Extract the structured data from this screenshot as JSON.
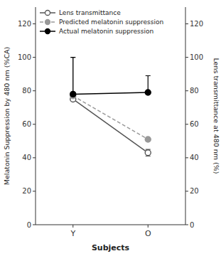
{
  "chart_data": {
    "type": "line",
    "xlabel": "Subjects",
    "ylabel": "Melatonin Suppression by 480 nm (%CA)",
    "y2label": "Lens transmittance at 480 nm (%)",
    "categories": [
      "Y",
      "O"
    ],
    "series": [
      {
        "name": "Lens transmittance",
        "color": "#555555",
        "marker": "open-circle",
        "line_style": "solid",
        "values": [
          75,
          43
        ],
        "error_low": [
          0,
          2
        ],
        "error_high": [
          0,
          2
        ]
      },
      {
        "name": "Predicted melatonin suppression",
        "color": "#999999",
        "marker": "circle",
        "line_style": "dashed",
        "values": [
          77,
          51
        ],
        "error_low": [
          0,
          0
        ],
        "error_high": [
          23,
          0
        ]
      },
      {
        "name": "Actual melatonin suppression",
        "color": "#000000",
        "marker": "circle",
        "line_style": "solid",
        "values": [
          78,
          79
        ],
        "error_low": [
          0,
          0
        ],
        "error_high": [
          22,
          10
        ]
      }
    ],
    "ylim": [
      0,
      130
    ],
    "yticks": [
      0,
      20,
      40,
      60,
      80,
      100,
      120
    ],
    "y2lim": [
      0,
      130
    ],
    "y2ticks": [
      0,
      20,
      40,
      60,
      80,
      100,
      120
    ],
    "grid": false,
    "legend": "upper left"
  }
}
